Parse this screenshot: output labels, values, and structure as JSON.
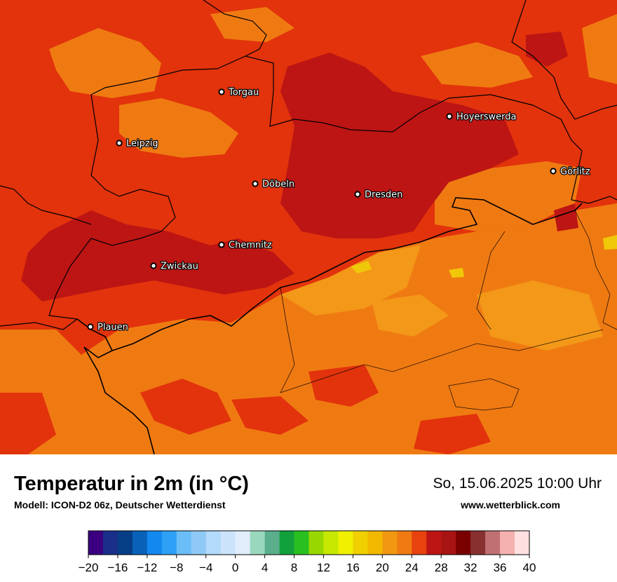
{
  "map": {
    "cities": [
      {
        "name": "Torgau"
      },
      {
        "name": "Leipzig"
      },
      {
        "name": "Hoyerswerda"
      },
      {
        "name": "Görlitz"
      },
      {
        "name": "Döbeln"
      },
      {
        "name": "Dresden"
      },
      {
        "name": "Chemnitz"
      },
      {
        "name": "Zwickau"
      },
      {
        "name": "Plauen"
      }
    ],
    "colors": {
      "t20_22": "#f07a12",
      "t22_24": "#e8420e",
      "t24_26": "#e2330c",
      "t26_28": "#bd1514",
      "t18_20": "#f39818",
      "t16_18": "#f0c80a"
    }
  },
  "header": {
    "title": "Temperatur in 2m (in °C)",
    "model": "Modell: ICON-D2 06z, Deutscher Wetterdienst",
    "datetime": "So, 15.06.2025 10:00 Uhr",
    "website": "www.wetterblick.com"
  },
  "legend": {
    "tick_labels": [
      "−20",
      "−16",
      "−12",
      "−8",
      "−4",
      "0",
      "4",
      "8",
      "12",
      "16",
      "20",
      "24",
      "28",
      "32",
      "36",
      "40"
    ],
    "colors": [
      "#3a0080",
      "#1a2f8a",
      "#063f86",
      "#0a61b8",
      "#1388ee",
      "#2ea0f5",
      "#6bbdf7",
      "#8fcaf6",
      "#b3dafa",
      "#cce4fb",
      "#e0eefb",
      "#9ad8be",
      "#5aae8c",
      "#12a03c",
      "#28c020",
      "#98d800",
      "#c6e800",
      "#f0f000",
      "#f0d000",
      "#f2b800",
      "#f29810",
      "#f07a12",
      "#e8420e",
      "#bd1514",
      "#a81414",
      "#7a0000",
      "#883030",
      "#c07070",
      "#f5b0b0",
      "#ffe0e0"
    ]
  }
}
